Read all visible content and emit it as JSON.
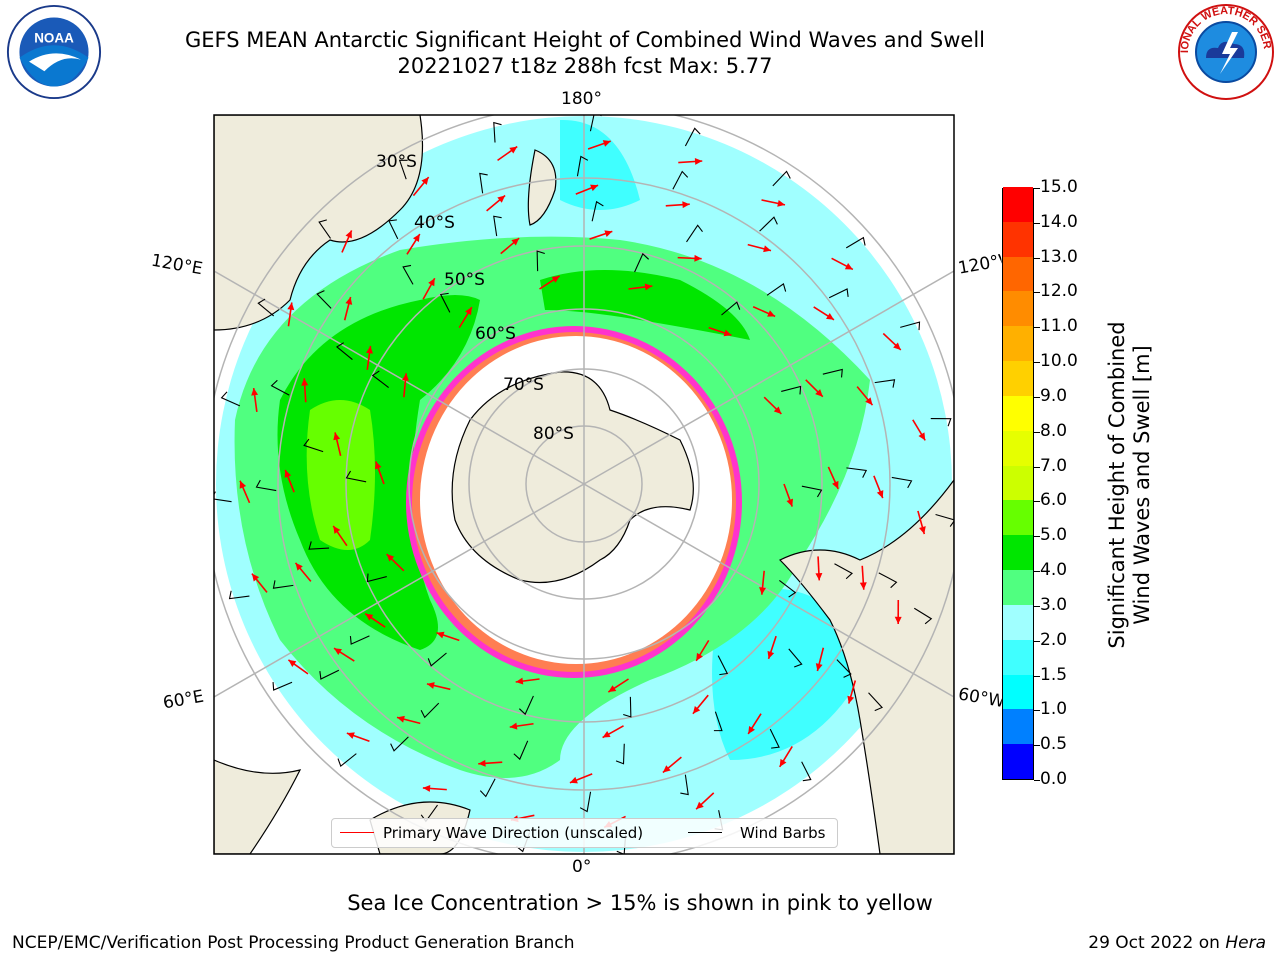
{
  "title": {
    "line1": "GEFS MEAN Antarctic Significant Height of Combined Wind Waves and Swell",
    "line2": "20221027 t18z 288h fcst   Max: 5.77"
  },
  "logos": {
    "left": "NOAA",
    "right": "NATIONAL WEATHER SERVICE"
  },
  "map": {
    "projection": "south-polar-stereographic",
    "lon_labels": {
      "top": "180°",
      "bottom": "0°",
      "upper_left": "120°E",
      "upper_right": "120°W",
      "lower_left": "60°E",
      "lower_right": "60°W"
    },
    "lat_labels": [
      "30°S",
      "40°S",
      "50°S",
      "60°S",
      "70°S",
      "80°S"
    ],
    "colors": {
      "land": "#efecdc",
      "ice_free_mask": "#ffffff",
      "sea_ice_edge": "#ff33cc",
      "wave_arrow": "#ff0000",
      "wind_barb": "#000000",
      "graticule": "#b4b4b4"
    }
  },
  "colorbar": {
    "label_line1": "Significant Height of Combined",
    "label_line2": "Wind Waves and Swell [m]",
    "ticks": [
      "0.0",
      "0.5",
      "1.0",
      "1.5",
      "2.0",
      "3.0",
      "4.0",
      "5.0",
      "6.0",
      "7.0",
      "8.0",
      "9.0",
      "10.0",
      "11.0",
      "12.0",
      "13.0",
      "14.0",
      "15.0"
    ],
    "colors": [
      "#0000ff",
      "#0080ff",
      "#00ffff",
      "#40ffff",
      "#a0ffff",
      "#50ff80",
      "#00e600",
      "#66ff00",
      "#ccff00",
      "#e6ff00",
      "#ffff00",
      "#ffd000",
      "#ffb000",
      "#ff8c00",
      "#ff6600",
      "#ff3300",
      "#ff0000"
    ]
  },
  "legend": {
    "items": [
      {
        "label": "Primary Wave Direction (unscaled)",
        "color": "#ff0000"
      },
      {
        "label": "Wind Barbs",
        "color": "#000000"
      }
    ]
  },
  "caption": "Sea Ice Concentration > 15% is shown in pink to yellow",
  "footer": {
    "left": "NCEP/EMC/Verification Post Processing Product Generation Branch",
    "right_prefix": "29 Oct 2022 on ",
    "right_host": "Hera"
  }
}
